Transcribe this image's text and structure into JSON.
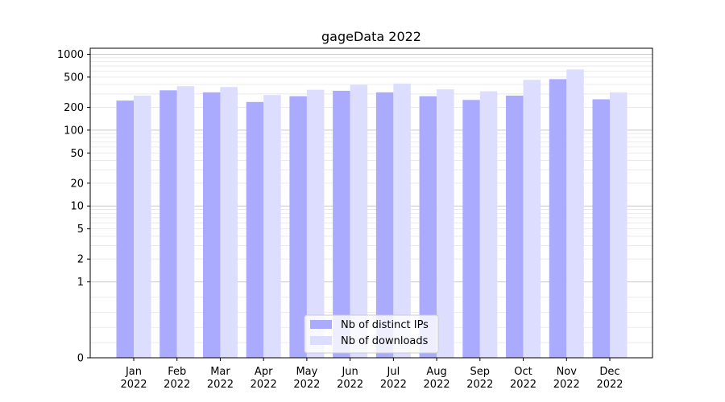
{
  "chart_data": {
    "type": "bar",
    "title": "gageData 2022",
    "xlabel": "",
    "ylabel": "",
    "yscale": "symlog",
    "ylim": [
      0,
      1200
    ],
    "yticks": [
      0,
      1,
      2,
      5,
      10,
      20,
      50,
      100,
      200,
      500,
      1000
    ],
    "ytick_labels": [
      "0",
      "1",
      "2",
      "5",
      "10",
      "20",
      "50",
      "100",
      "200",
      "500",
      "1000"
    ],
    "categories": [
      [
        "Jan",
        "2022"
      ],
      [
        "Feb",
        "2022"
      ],
      [
        "Mar",
        "2022"
      ],
      [
        "Apr",
        "2022"
      ],
      [
        "May",
        "2022"
      ],
      [
        "Jun",
        "2022"
      ],
      [
        "Jul",
        "2022"
      ],
      [
        "Aug",
        "2022"
      ],
      [
        "Sep",
        "2022"
      ],
      [
        "Oct",
        "2022"
      ],
      [
        "Nov",
        "2022"
      ],
      [
        "Dec",
        "2022"
      ]
    ],
    "series": [
      {
        "name": "Nb of distinct IPs",
        "color": "#aaaaff",
        "values": [
          245,
          335,
          315,
          235,
          280,
          330,
          315,
          280,
          250,
          285,
          470,
          255
        ]
      },
      {
        "name": "Nb of downloads",
        "color": "#ddddff",
        "values": [
          285,
          380,
          370,
          290,
          340,
          395,
          410,
          345,
          325,
          460,
          630,
          315
        ]
      }
    ],
    "grid": true,
    "legend_position": "bottom-center"
  }
}
